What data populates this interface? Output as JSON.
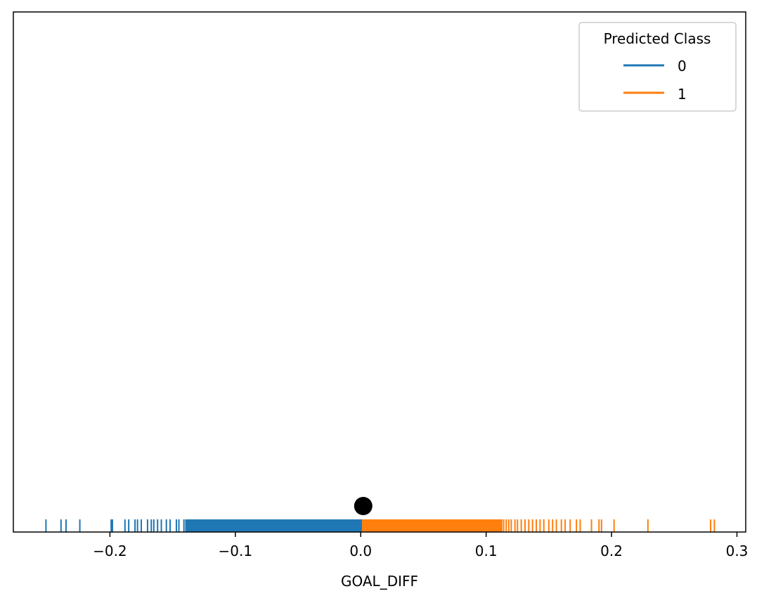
{
  "chart_data": {
    "type": "rug",
    "title": "",
    "xlabel": "GOAL_DIFF",
    "ylabel": "",
    "xlim": [
      -0.277,
      0.307
    ],
    "xticks": [
      -0.2,
      -0.1,
      0.0,
      0.1,
      0.2,
      0.3
    ],
    "xtick_labels": [
      "−0.2",
      "−0.1",
      "0.0",
      "0.1",
      "0.2",
      "0.3"
    ],
    "grid": false,
    "legend": {
      "title": "Predicted Class",
      "placement": "top-right",
      "entries": [
        {
          "label": "0",
          "color": "#1f77b4"
        },
        {
          "label": "1",
          "color": "#ff7f0e"
        }
      ]
    },
    "series": [
      {
        "class": "0",
        "color": "#1f77b4",
        "sparse_x": [
          -0.251,
          -0.239,
          -0.235,
          -0.224,
          -0.199,
          -0.198,
          -0.188,
          -0.185,
          -0.18,
          -0.178,
          -0.175,
          -0.17,
          -0.167,
          -0.165,
          -0.162,
          -0.159,
          -0.155,
          -0.152,
          -0.147,
          -0.145,
          -0.141
        ],
        "dense_range": [
          -0.14,
          0.001
        ]
      },
      {
        "class": "1",
        "color": "#ff7f0e",
        "dense_range": [
          0.001,
          0.113
        ],
        "sparse_x": [
          0.114,
          0.116,
          0.118,
          0.12,
          0.123,
          0.125,
          0.128,
          0.131,
          0.134,
          0.137,
          0.14,
          0.143,
          0.146,
          0.15,
          0.153,
          0.156,
          0.16,
          0.163,
          0.167,
          0.172,
          0.175,
          0.184,
          0.19,
          0.192,
          0.202,
          0.229,
          0.279,
          0.282
        ]
      }
    ],
    "marker": {
      "x": 0.002,
      "color": "#000000"
    }
  }
}
